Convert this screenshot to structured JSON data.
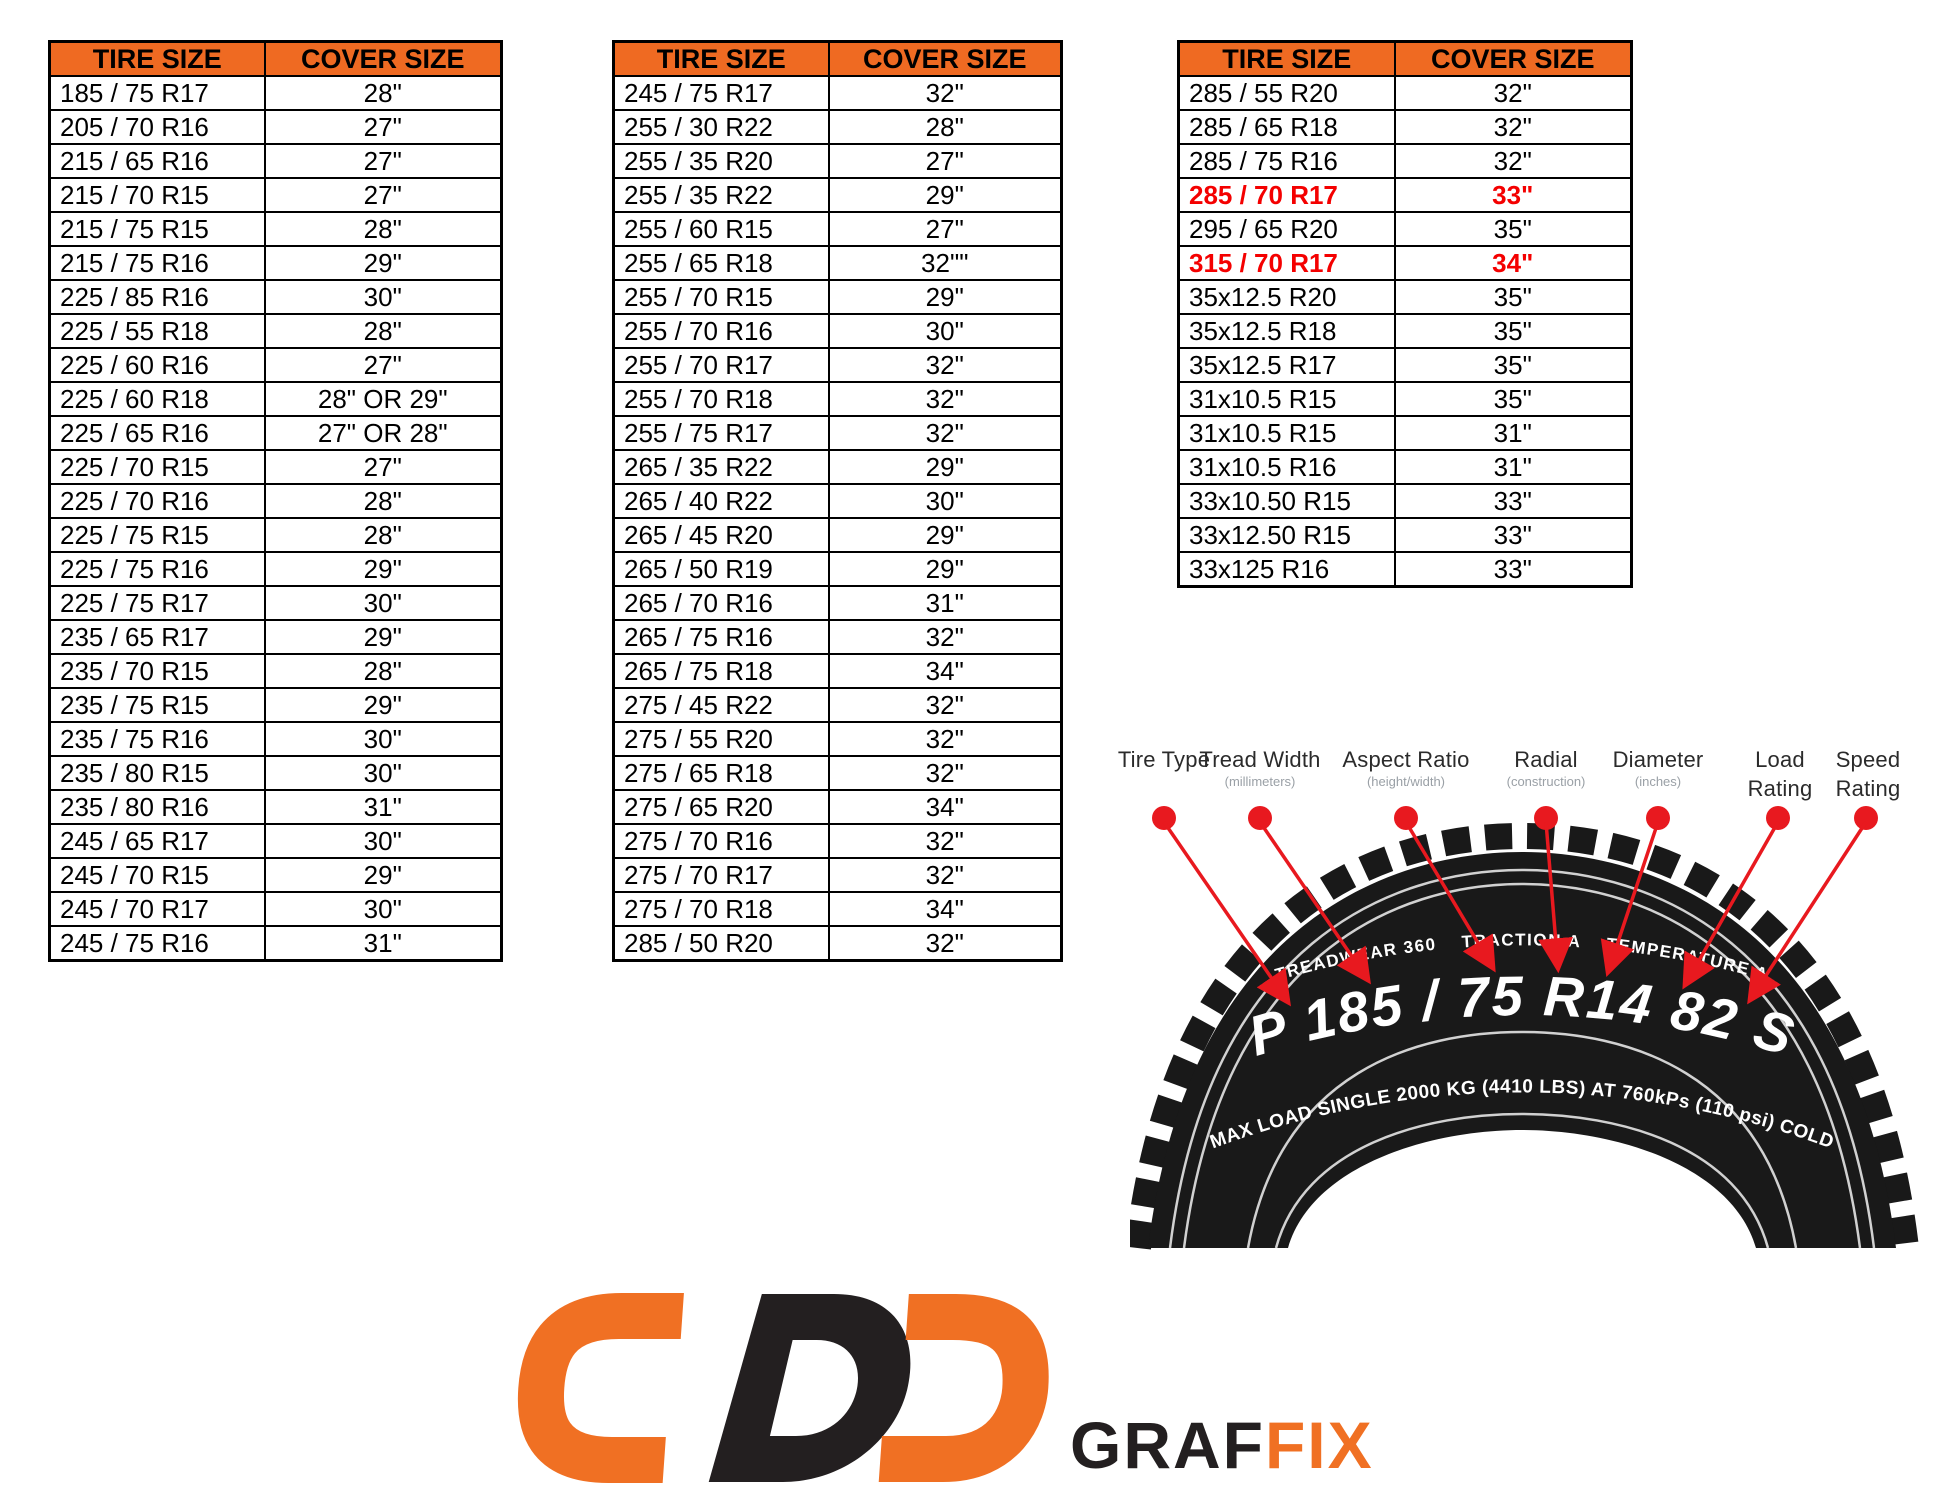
{
  "colors": {
    "header_bg": "#ef6a22",
    "row_red": "#f40000",
    "arrow_red": "#e8191f",
    "tire_black": "#191919",
    "logo_orange": "#f07023",
    "logo_black": "#231f20"
  },
  "tables": [
    {
      "headers": [
        "TIRE SIZE",
        "COVER SIZE"
      ],
      "rows": [
        {
          "tire": "185 / 75 R17",
          "cover": "28\"",
          "highlight": false
        },
        {
          "tire": "205 / 70 R16",
          "cover": "27\"",
          "highlight": false
        },
        {
          "tire": "215 / 65 R16",
          "cover": "27\"",
          "highlight": false
        },
        {
          "tire": "215 / 70 R15",
          "cover": "27\"",
          "highlight": false
        },
        {
          "tire": "215 / 75 R15",
          "cover": "28\"",
          "highlight": false
        },
        {
          "tire": "215 / 75 R16",
          "cover": "29\"",
          "highlight": false
        },
        {
          "tire": "225 / 85 R16",
          "cover": "30\"",
          "highlight": false
        },
        {
          "tire": "225 / 55 R18",
          "cover": "28\"",
          "highlight": false
        },
        {
          "tire": "225 / 60 R16",
          "cover": "27\"",
          "highlight": false
        },
        {
          "tire": "225 / 60 R18",
          "cover": "28\" OR 29\"",
          "highlight": false
        },
        {
          "tire": "225 / 65 R16",
          "cover": "27\" OR 28\"",
          "highlight": false
        },
        {
          "tire": "225 / 70 R15",
          "cover": "27\"",
          "highlight": false
        },
        {
          "tire": "225 / 70 R16",
          "cover": "28\"",
          "highlight": false
        },
        {
          "tire": "225 / 75 R15",
          "cover": "28\"",
          "highlight": false
        },
        {
          "tire": "225 / 75 R16",
          "cover": "29\"",
          "highlight": false
        },
        {
          "tire": "225 / 75 R17",
          "cover": "30\"",
          "highlight": false
        },
        {
          "tire": "235 / 65 R17",
          "cover": "29\"",
          "highlight": false
        },
        {
          "tire": "235 / 70 R15",
          "cover": "28\"",
          "highlight": false
        },
        {
          "tire": "235 / 75 R15",
          "cover": "29\"",
          "highlight": false
        },
        {
          "tire": "235 / 75 R16",
          "cover": "30\"",
          "highlight": false
        },
        {
          "tire": "235 / 80 R15",
          "cover": "30\"",
          "highlight": false
        },
        {
          "tire": "235 / 80 R16",
          "cover": "31\"",
          "highlight": false
        },
        {
          "tire": "245 / 65 R17",
          "cover": "30\"",
          "highlight": false
        },
        {
          "tire": "245 / 70 R15",
          "cover": "29\"",
          "highlight": false
        },
        {
          "tire": "245 / 70 R17",
          "cover": "30\"",
          "highlight": false
        },
        {
          "tire": "245 / 75 R16",
          "cover": "31\"",
          "highlight": false
        }
      ]
    },
    {
      "headers": [
        "TIRE SIZE",
        "COVER SIZE"
      ],
      "rows": [
        {
          "tire": "245 / 75 R17",
          "cover": "32\"",
          "highlight": false
        },
        {
          "tire": "255 / 30 R22",
          "cover": "28\"",
          "highlight": false
        },
        {
          "tire": "255 / 35 R20",
          "cover": "27\"",
          "highlight": false
        },
        {
          "tire": "255 / 35 R22",
          "cover": "29\"",
          "highlight": false
        },
        {
          "tire": "255 / 60 R15",
          "cover": "27\"",
          "highlight": false
        },
        {
          "tire": "255 / 65 R18",
          "cover": "32\"\"",
          "highlight": false
        },
        {
          "tire": "255 / 70 R15",
          "cover": "29\"",
          "highlight": false
        },
        {
          "tire": "255 / 70 R16",
          "cover": "30\"",
          "highlight": false
        },
        {
          "tire": "255 / 70 R17",
          "cover": "32\"",
          "highlight": false
        },
        {
          "tire": "255 / 70 R18",
          "cover": "32\"",
          "highlight": false
        },
        {
          "tire": "255 / 75 R17",
          "cover": "32\"",
          "highlight": false
        },
        {
          "tire": "265 / 35 R22",
          "cover": "29\"",
          "highlight": false
        },
        {
          "tire": "265 / 40 R22",
          "cover": "30\"",
          "highlight": false
        },
        {
          "tire": "265 / 45 R20",
          "cover": "29\"",
          "highlight": false
        },
        {
          "tire": "265 / 50 R19",
          "cover": "29\"",
          "highlight": false
        },
        {
          "tire": "265 / 70 R16",
          "cover": "31\"",
          "highlight": false
        },
        {
          "tire": "265 / 75 R16",
          "cover": "32\"",
          "highlight": false
        },
        {
          "tire": "265 / 75 R18",
          "cover": "34\"",
          "highlight": false
        },
        {
          "tire": "275 / 45 R22",
          "cover": "32\"",
          "highlight": false
        },
        {
          "tire": "275 / 55 R20",
          "cover": "32\"",
          "highlight": false
        },
        {
          "tire": "275 / 65 R18",
          "cover": "32\"",
          "highlight": false
        },
        {
          "tire": "275 / 65 R20",
          "cover": "34\"",
          "highlight": false
        },
        {
          "tire": "275 / 70 R16",
          "cover": "32\"",
          "highlight": false
        },
        {
          "tire": "275 / 70 R17",
          "cover": "32\"",
          "highlight": false
        },
        {
          "tire": "275 / 70 R18",
          "cover": "34\"",
          "highlight": false
        },
        {
          "tire": "285 / 50 R20",
          "cover": "32\"",
          "highlight": false
        }
      ]
    },
    {
      "headers": [
        "TIRE SIZE",
        "COVER SIZE"
      ],
      "rows": [
        {
          "tire": "285 / 55 R20",
          "cover": "32\"",
          "highlight": false
        },
        {
          "tire": "285 / 65 R18",
          "cover": "32\"",
          "highlight": false
        },
        {
          "tire": "285 / 75 R16",
          "cover": "32\"",
          "highlight": false
        },
        {
          "tire": "285 / 70 R17",
          "cover": "33\"",
          "highlight": true
        },
        {
          "tire": "295 / 65 R20",
          "cover": "35\"",
          "highlight": false
        },
        {
          "tire": "315 / 70 R17",
          "cover": "34\"",
          "highlight": true
        },
        {
          "tire": "35x12.5 R20",
          "cover": "35\"",
          "highlight": false
        },
        {
          "tire": "35x12.5 R18",
          "cover": "35\"",
          "highlight": false
        },
        {
          "tire": "35x12.5 R17",
          "cover": "35\"",
          "highlight": false
        },
        {
          "tire": "31x10.5 R15",
          "cover": "35\"",
          "highlight": false
        },
        {
          "tire": "31x10.5 R15",
          "cover": "31\"",
          "highlight": false
        },
        {
          "tire": "31x10.5 R16",
          "cover": "31\"",
          "highlight": false
        },
        {
          "tire": "33x10.50 R15",
          "cover": "33\"",
          "highlight": false
        },
        {
          "tire": "33x12.50 R15",
          "cover": "33\"",
          "highlight": false
        },
        {
          "tire": "33x125 R16",
          "cover": "33\"",
          "highlight": false
        }
      ]
    }
  ],
  "diagram": {
    "labels": [
      {
        "title": "Tire Type",
        "sub": ""
      },
      {
        "title": "Tread Width",
        "sub": "(millimeters)"
      },
      {
        "title": "Aspect Ratio",
        "sub": "(height/width)"
      },
      {
        "title": "Radial",
        "sub": "(construction)"
      },
      {
        "title": "Diameter",
        "sub": "(inches)"
      },
      {
        "title": "Load Rating",
        "sub": ""
      },
      {
        "title": "Speed Rating",
        "sub": ""
      }
    ],
    "tire_small_line": "TREADWEAR 360    TRACTION A    TEMPERATURE A",
    "tire_code": "P 185 / 75 R14 82 S",
    "tire_max_line": "MAX LOAD SINGLE 2000 KG (4410 LBS) AT 760kPs (110 psi) COLD"
  },
  "logo": {
    "text_black": "GRAF",
    "text_orange": "FIX"
  }
}
